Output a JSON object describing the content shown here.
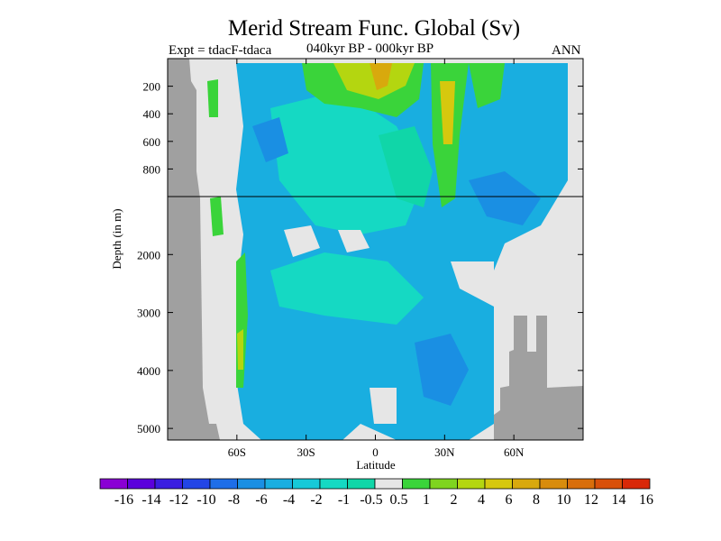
{
  "header": {
    "title": "Merid Stream Func. Global (Sv)",
    "left": "Expt = tdacF-tdaca",
    "center": "040kyr BP - 000kyr BP",
    "right": "ANN"
  },
  "chart_data": {
    "type": "heatmap",
    "title": "Merid Stream Func. Global (Sv)",
    "xlabel": "Latitude",
    "ylabel": "Depth (in m)",
    "xlim": [
      -90,
      90
    ],
    "x_ticks": [
      {
        "value": -60,
        "label": "60S"
      },
      {
        "value": -30,
        "label": "30S"
      },
      {
        "value": 0,
        "label": "0"
      },
      {
        "value": 30,
        "label": "30N"
      },
      {
        "value": 60,
        "label": "60N"
      }
    ],
    "upper_panel": {
      "ylim": [
        1000,
        0
      ],
      "y_ticks": [
        "200",
        "400",
        "600",
        "800"
      ],
      "y_values": [
        200,
        400,
        600,
        800
      ]
    },
    "lower_panel": {
      "ylim": [
        5200,
        1000
      ],
      "y_ticks": [
        "2000",
        "3000",
        "4000",
        "5000"
      ],
      "y_values": [
        2000,
        3000,
        4000,
        5000
      ]
    },
    "colorbar": {
      "labels": [
        "-16",
        "-14",
        "-12",
        "-10",
        "-8",
        "-6",
        "-4",
        "-2",
        "-1",
        "-0.5",
        "0.5",
        "1",
        "2",
        "4",
        "6",
        "8",
        "10",
        "12",
        "14",
        "16"
      ],
      "colors": [
        "#8a00d4",
        "#5b00dc",
        "#3a1ee0",
        "#2345e6",
        "#1e6ee8",
        "#1a8fe3",
        "#19aee0",
        "#17c9d8",
        "#15d9c3",
        "#10d6a8",
        "#e6e6e6",
        "#3ad43a",
        "#7fd41f",
        "#b4d610",
        "#d6c80e",
        "#d8a90d",
        "#d88c0c",
        "#d86e0b",
        "#d8500a",
        "#d82808"
      ]
    }
  }
}
